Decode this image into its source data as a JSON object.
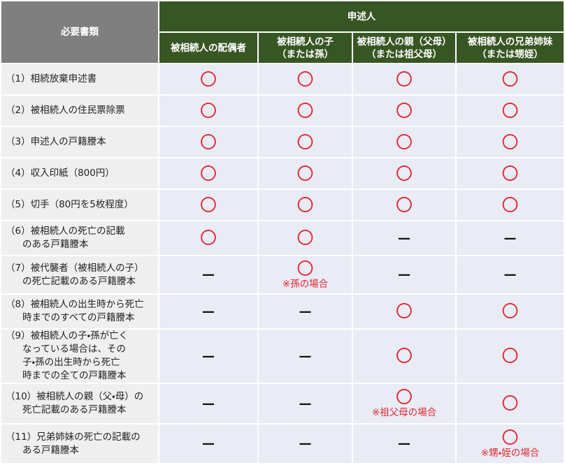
{
  "header": {
    "documents": "必要書類",
    "applicant": "申述人",
    "columns": [
      [
        "被相続人の配偶者"
      ],
      [
        "被相続人の子",
        "（または孫）"
      ],
      [
        "被相続人の親（父母）",
        "（または祖父母）"
      ],
      [
        "被相続人の兄弟姉妹",
        "（または甥姪）"
      ]
    ]
  },
  "rows": [
    {
      "label": [
        "（1）相続放棄申述書"
      ],
      "cells": [
        "〇",
        "〇",
        "〇",
        "〇"
      ]
    },
    {
      "label": [
        "（2）被相続人の住民票除票"
      ],
      "cells": [
        "〇",
        "〇",
        "〇",
        "〇"
      ]
    },
    {
      "label": [
        "（3）申述人の戸籍謄本"
      ],
      "cells": [
        "〇",
        "〇",
        "〇",
        "〇"
      ]
    },
    {
      "label": [
        "（4）収入印紙（800円）"
      ],
      "cells": [
        "〇",
        "〇",
        "〇",
        "〇"
      ]
    },
    {
      "label": [
        "（5）切手（80円を5枚程度）"
      ],
      "cells": [
        "〇",
        "〇",
        "〇",
        "〇"
      ]
    },
    {
      "label": [
        "（6）被相続人の死亡の記載",
        "のある戸籍謄本"
      ],
      "cells": [
        "〇",
        "〇",
        "—",
        "—"
      ]
    },
    {
      "label": [
        "（7）被代襲者（被相続人の子）",
        "の死亡記載のある戸籍謄本"
      ],
      "cells": [
        "—",
        "〇",
        "—",
        "—"
      ],
      "notes": [
        null,
        "※孫の場合",
        null,
        null
      ]
    },
    {
      "label": [
        "（8）被相続人の出生時から死亡",
        "時までのすべての戸籍謄本"
      ],
      "cells": [
        "—",
        "—",
        "〇",
        "〇"
      ]
    },
    {
      "label": [
        "（9）被相続人の子・孫が亡く",
        "なっている場合は、その",
        "子・孫の出生時から死亡",
        "時までの全ての戸籍謄本"
      ],
      "cells": [
        "—",
        "—",
        "〇",
        "〇"
      ]
    },
    {
      "label": [
        "（10）被相続人の親（父・母）の",
        "死亡記載のある戸籍謄本"
      ],
      "cells": [
        "—",
        "—",
        "〇",
        "〇"
      ],
      "notes": [
        null,
        null,
        "※祖父母の場合",
        null
      ]
    },
    {
      "label": [
        "（11）兄弟姉妹の死亡の記載の",
        "ある戸籍謄本"
      ],
      "cells": [
        "—",
        "—",
        "—",
        "〇"
      ],
      "notes": [
        null,
        null,
        null,
        "※甥・姪の場合"
      ]
    }
  ]
}
